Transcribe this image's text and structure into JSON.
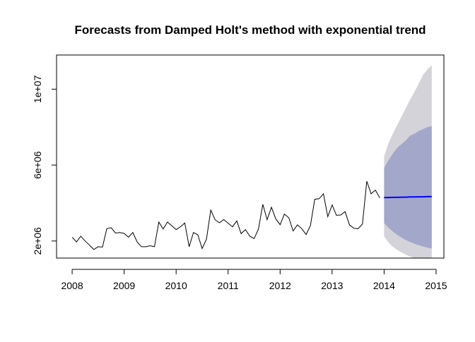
{
  "chart_data": {
    "type": "line",
    "title": "Forecasts from Damped Holt's method with exponential trend",
    "xlabel": "",
    "ylabel": "",
    "xlim": [
      2007.7,
      2015.15
    ],
    "ylim": [
      1100000,
      11800000
    ],
    "grid": false,
    "legend": "none",
    "x_ticks": [
      2008,
      2009,
      2010,
      2011,
      2012,
      2013,
      2014,
      2015
    ],
    "x_tick_labels": [
      "2008",
      "2009",
      "2010",
      "2011",
      "2012",
      "2013",
      "2014",
      "2015"
    ],
    "y_ticks": [
      2000000,
      6000000,
      10000000
    ],
    "y_tick_labels": [
      "2e+06",
      "6e+06",
      "1e+07"
    ],
    "series": [
      {
        "role": "observed",
        "color": "#000000",
        "start": 2008.0,
        "step": 0.0833333,
        "values": [
          2200000,
          1950000,
          2250000,
          2000000,
          1780000,
          1550000,
          1700000,
          1680000,
          2650000,
          2700000,
          2420000,
          2450000,
          2400000,
          2200000,
          2450000,
          1950000,
          1700000,
          1700000,
          1750000,
          1700000,
          3000000,
          2630000,
          3000000,
          2800000,
          2600000,
          2750000,
          2950000,
          1700000,
          2450000,
          2330000,
          1600000,
          2100000,
          3630000,
          3120000,
          2960000,
          3130000,
          2940000,
          2750000,
          3060000,
          2390000,
          2600000,
          2250000,
          2130000,
          2620000,
          3930000,
          3120000,
          3780000,
          3160000,
          2860000,
          3420000,
          3220000,
          2530000,
          2850000,
          2650000,
          2340000,
          2820000,
          4200000,
          4230000,
          4490000,
          3280000,
          3900000,
          3350000,
          3370000,
          3550000,
          2850000,
          2670000,
          2650000,
          2900000,
          5150000,
          4490000,
          4680000,
          4270000
        ]
      },
      {
        "role": "forecast",
        "color": "#0000ff",
        "start": 2014.0,
        "step": 0.0833333,
        "values": [
          4290000,
          4290000,
          4300000,
          4300000,
          4310000,
          4310000,
          4320000,
          4320000,
          4330000,
          4330000,
          4340000,
          4340000
        ]
      }
    ],
    "intervals": [
      {
        "level": "95%",
        "color": "#d3d3d9",
        "lower": [
          2250000,
          1920000,
          1700000,
          1530000,
          1400000,
          1280000,
          1180000,
          1100000,
          1030000,
          970000,
          920000,
          870000
        ],
        "upper": [
          6450000,
          7150000,
          7650000,
          8100000,
          8550000,
          9000000,
          9450000,
          9850000,
          10300000,
          10750000,
          11050000,
          11250000
        ]
      },
      {
        "level": "80%",
        "color": "#a3a8ca",
        "lower": [
          2950000,
          2700000,
          2500000,
          2330000,
          2180000,
          2050000,
          1950000,
          1850000,
          1780000,
          1710000,
          1650000,
          1600000
        ],
        "upper": [
          5850000,
          6250000,
          6600000,
          6900000,
          7100000,
          7300000,
          7550000,
          7650000,
          7800000,
          7900000,
          8000000,
          8050000
        ]
      }
    ]
  }
}
